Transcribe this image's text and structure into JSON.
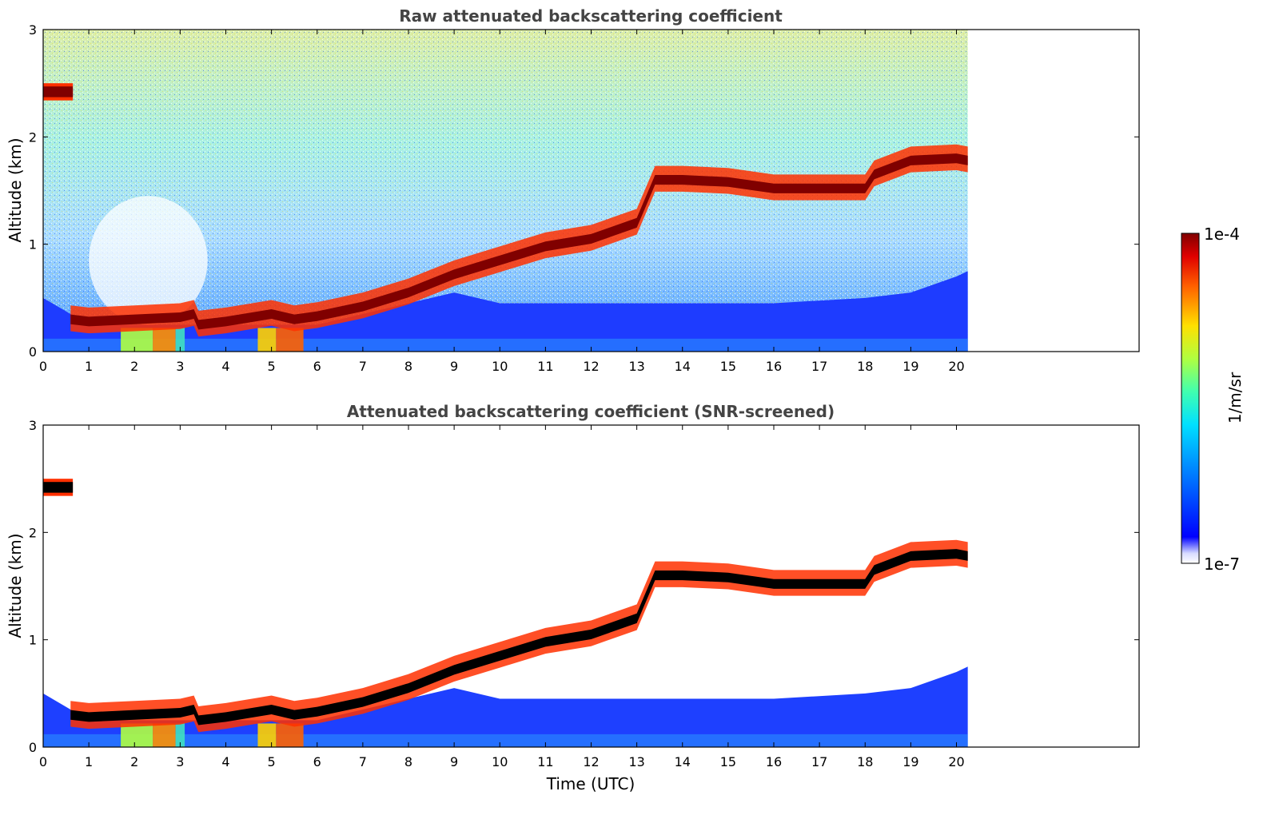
{
  "chart_data": [
    {
      "type": "heatmap",
      "title": "Raw attenuated backscattering coefficient",
      "xlabel": "",
      "ylabel": "Altitude (km)",
      "xlim": [
        0,
        24
      ],
      "ylim": [
        0,
        3
      ],
      "x_ticks": [
        "0",
        "1",
        "2",
        "3",
        "4",
        "5",
        "6",
        "7",
        "8",
        "9",
        "10",
        "11",
        "12",
        "13",
        "14",
        "15",
        "16",
        "17",
        "18",
        "19",
        "20"
      ],
      "y_ticks": [
        "0",
        "1",
        "2",
        "3"
      ],
      "data_end_time": 20.25,
      "cloud_layer": {
        "time": [
          0.6,
          1,
          2,
          3,
          3.3,
          3.4,
          4,
          5,
          5.5,
          6,
          7,
          8,
          9,
          10,
          11,
          12,
          13,
          13.4,
          14,
          15,
          16,
          17,
          18,
          18.2,
          19,
          20,
          20.25
        ],
        "altitude_km": [
          0.3,
          0.28,
          0.3,
          0.32,
          0.35,
          0.25,
          0.28,
          0.35,
          0.3,
          0.33,
          0.42,
          0.55,
          0.72,
          0.85,
          0.98,
          1.05,
          1.2,
          1.6,
          1.6,
          1.58,
          1.52,
          1.52,
          1.52,
          1.65,
          1.78,
          1.8,
          1.78
        ]
      },
      "upper_cloud": {
        "time_start": 0.0,
        "time_end": 0.65,
        "altitude_km": 2.42
      },
      "noise": "high"
    },
    {
      "type": "heatmap",
      "title": "Attenuated backscattering coefficient (SNR-screened)",
      "xlabel": "Time (UTC)",
      "ylabel": "Altitude (km)",
      "xlim": [
        0,
        24
      ],
      "ylim": [
        0,
        3
      ],
      "x_ticks": [
        "0",
        "1",
        "2",
        "3",
        "4",
        "5",
        "6",
        "7",
        "8",
        "9",
        "10",
        "11",
        "12",
        "13",
        "14",
        "15",
        "16",
        "17",
        "18",
        "19",
        "20"
      ],
      "y_ticks": [
        "0",
        "1",
        "2",
        "3"
      ],
      "data_end_time": 20.25,
      "cloud_layer": {
        "time": [
          0.6,
          1,
          2,
          3,
          3.3,
          3.4,
          4,
          5,
          5.5,
          6,
          7,
          8,
          9,
          10,
          11,
          12,
          13,
          13.4,
          14,
          15,
          16,
          17,
          18,
          18.2,
          19,
          20,
          20.25
        ],
        "altitude_km": [
          0.3,
          0.28,
          0.3,
          0.32,
          0.35,
          0.25,
          0.28,
          0.35,
          0.3,
          0.33,
          0.42,
          0.55,
          0.72,
          0.85,
          0.98,
          1.05,
          1.2,
          1.6,
          1.6,
          1.58,
          1.52,
          1.52,
          1.52,
          1.65,
          1.78,
          1.8,
          1.78
        ]
      },
      "upper_cloud": {
        "time_start": 0.0,
        "time_end": 0.65,
        "altitude_km": 2.42
      },
      "noise": "screened"
    }
  ],
  "colorbar": {
    "label": "1/m/sr",
    "max_label": "1e-4",
    "min_label": "1e-7",
    "colormap": "jet"
  },
  "colors": {
    "cloud_core": "#800000",
    "screened_cloud_core": "#000000",
    "title": "#444444"
  }
}
